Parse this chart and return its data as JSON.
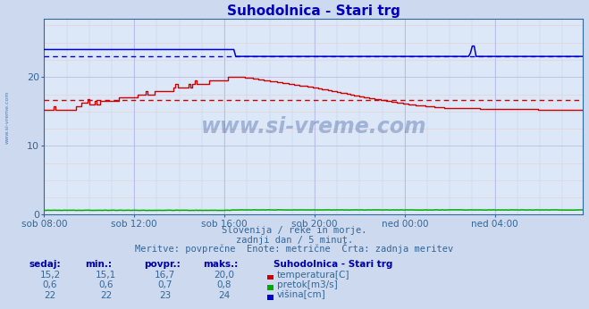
{
  "title": "Suhodolnica - Stari trg",
  "title_color": "#0000bb",
  "bg_color": "#ccd9ee",
  "plot_bg_color": "#dce8f8",
  "grid_color_v": "#b8b8e8",
  "grid_color_h_minor": "#e8cccc",
  "text_color": "#336699",
  "subtitle1": "Slovenija / reke in morje.",
  "subtitle2": "zadnji dan / 5 minut.",
  "subtitle3": "Meritve: povprečne  Enote: metrične  Črta: zadnja meritev",
  "legend_title": "Suhodolnica - Stari trg",
  "legend_items": [
    {
      "label": "temperatura[C]",
      "color": "#cc0000"
    },
    {
      "label": "pretok[m3/s]",
      "color": "#00aa00"
    },
    {
      "label": "višina[cm]",
      "color": "#0000cc"
    }
  ],
  "stats_headers": [
    "sedaj:",
    "min.:",
    "povpr.:",
    "maks.:"
  ],
  "stats_rows": [
    [
      "15,2",
      "15,1",
      "16,7",
      "20,0"
    ],
    [
      "0,6",
      "0,6",
      "0,7",
      "0,8"
    ],
    [
      "22",
      "22",
      "23",
      "24"
    ]
  ],
  "xticklabels": [
    "sob 08:00",
    "sob 12:00",
    "sob 16:00",
    "sob 20:00",
    "ned 00:00",
    "ned 04:00"
  ],
  "yticks": [
    0,
    10,
    20
  ],
  "ymin": 0,
  "ymax": 28.5,
  "n_points": 288,
  "temp_avg": 16.7,
  "visina_avg": 23.0,
  "pretok_avg": 0.7
}
